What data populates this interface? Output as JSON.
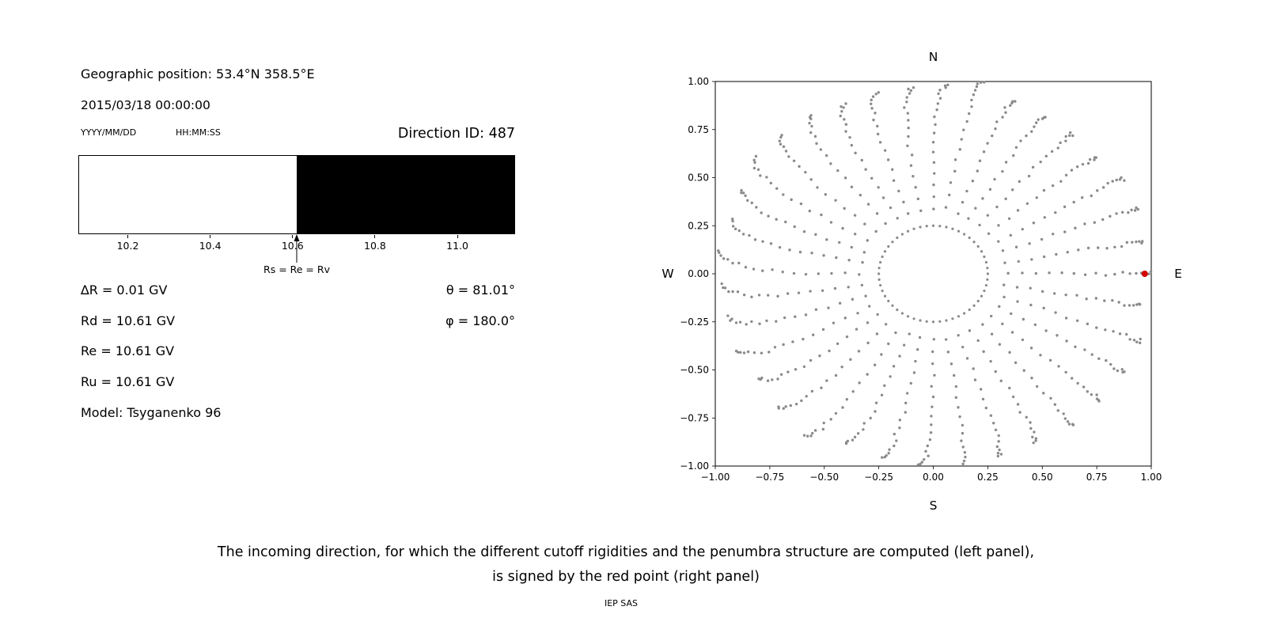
{
  "left_panel": {
    "geo_position": "Geographic position: 53.4°N 358.5°E",
    "datetime": "2015/03/18 00:00:00",
    "date_format_label": "YYYY/MM/DD",
    "time_format_label": "HH:MM:SS",
    "direction_id": "Direction ID: 487",
    "delta_r": "∆R = 0.01 GV",
    "rd": "Rd = 10.61 GV",
    "re": "Re = 10.61 GV",
    "ru": "Ru = 10.61 GV",
    "model": "Model: Tsyganenko 96",
    "theta": "θ = 81.01°",
    "phi": "φ = 180.0°"
  },
  "caption": {
    "line1": "The incoming direction, for which the different cutoff rigidities and the penumbra structure are computed (left panel),",
    "line2": "is signed by the red point (right panel)",
    "credit": "IEP SAS"
  },
  "chart_data": [
    {
      "type": "bar",
      "name": "penumbra-structure",
      "title": "Direction ID: 487",
      "x_range": [
        10.08,
        11.14
      ],
      "x_unit": "GV",
      "x_ticks": [
        10.2,
        10.4,
        10.6,
        10.8,
        11.0
      ],
      "segments": [
        {
          "from": 10.08,
          "to": 10.61,
          "color": "#ffffff",
          "meaning": "allowed rigidities (white, below cutoff)"
        },
        {
          "from": 10.61,
          "to": 11.14,
          "color": "#000000",
          "meaning": "forbidden rigidities (black, above cutoff)"
        }
      ],
      "annotation": {
        "x": 10.61,
        "label": "Rs = Re = Rv"
      },
      "values": {
        "delta_R_GV": 0.01,
        "Rd_GV": 10.61,
        "Re_GV": 10.61,
        "Ru_GV": 10.61,
        "theta_deg": 81.01,
        "phi_deg": 180.0,
        "model": "Tsyganenko 96"
      }
    },
    {
      "type": "scatter",
      "name": "incoming-direction-map",
      "xlim": [
        -1.0,
        1.0
      ],
      "ylim": [
        -1.0,
        1.0
      ],
      "x_ticks": [
        -1.0,
        -0.75,
        -0.5,
        -0.25,
        0.0,
        0.25,
        0.5,
        0.75,
        1.0
      ],
      "y_ticks": [
        -1.0,
        -0.75,
        -0.5,
        -0.25,
        0.0,
        0.25,
        0.5,
        0.75,
        1.0
      ],
      "compass_labels": {
        "top": "N",
        "bottom": "S",
        "left": "W",
        "right": "E"
      },
      "grid": false,
      "dot_color": "#8a8a8a",
      "highlight_point": {
        "x": 0.97,
        "y": 0.0,
        "color": "#d40000",
        "meaning": "incoming direction ID 487 (red point)"
      },
      "pattern": {
        "description": "grid of incoming directions: azimuth spokes with dots at equal zenith steps, r = sin(zenith); dotted inner ring near center",
        "azimuth_spokes": 36,
        "zenith_deg": {
          "from": 20,
          "to": 88,
          "step": 4
        },
        "curvature_deg": -7,
        "inner_ring": {
          "radius": 0.25,
          "points": 52
        }
      }
    }
  ]
}
